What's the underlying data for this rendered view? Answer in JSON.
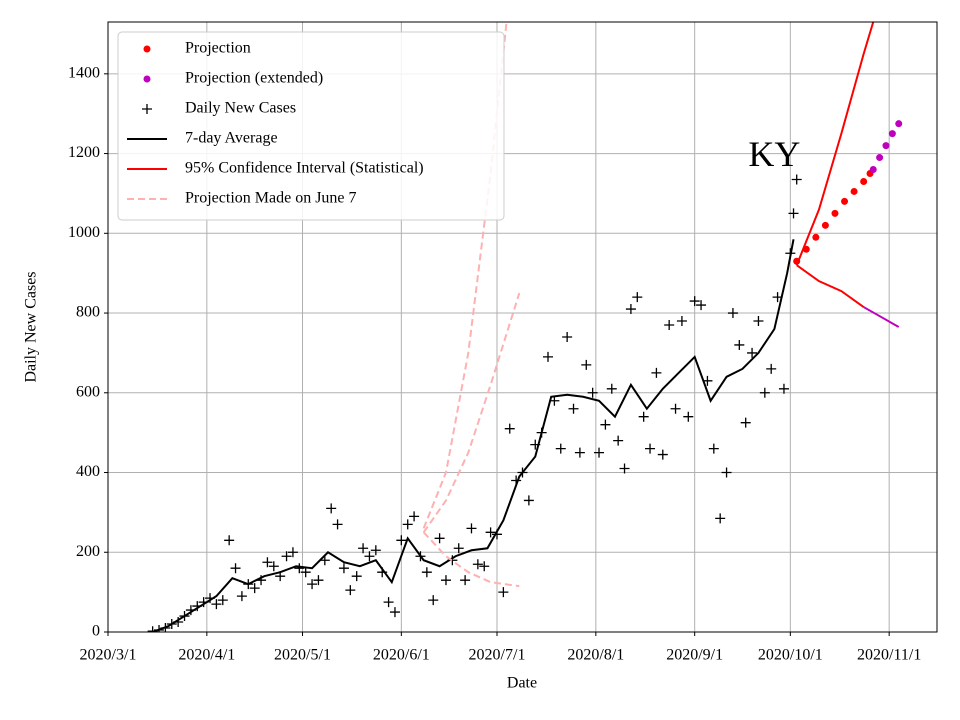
{
  "chart_data": {
    "type": "line",
    "annotation": "KY",
    "annotation_x": "2020-09-26",
    "annotation_y": 1190,
    "xlabel": "Date",
    "ylabel": "Daily New Cases",
    "xlim": [
      "2020-03-01",
      "2020-11-16"
    ],
    "ylim": [
      0,
      1530
    ],
    "xticks": [
      {
        "value": "2020-03-01",
        "label": "2020/3/1"
      },
      {
        "value": "2020-04-01",
        "label": "2020/4/1"
      },
      {
        "value": "2020-05-01",
        "label": "2020/5/1"
      },
      {
        "value": "2020-06-01",
        "label": "2020/6/1"
      },
      {
        "value": "2020-07-01",
        "label": "2020/7/1"
      },
      {
        "value": "2020-08-01",
        "label": "2020/8/1"
      },
      {
        "value": "2020-09-01",
        "label": "2020/9/1"
      },
      {
        "value": "2020-10-01",
        "label": "2020/10/1"
      },
      {
        "value": "2020-11-01",
        "label": "2020/11/1"
      }
    ],
    "yticks": [
      0,
      200,
      400,
      600,
      800,
      1000,
      1200,
      1400
    ],
    "grid": true,
    "legend": "upper left",
    "series": [
      {
        "name": "Projection",
        "color": "#ff0000",
        "marker": "dot",
        "x": [
          "2020-10-03",
          "2020-10-06",
          "2020-10-09",
          "2020-10-12",
          "2020-10-15",
          "2020-10-18",
          "2020-10-21",
          "2020-10-24",
          "2020-10-26"
        ],
        "values": [
          930,
          960,
          990,
          1020,
          1050,
          1080,
          1105,
          1130,
          1150
        ]
      },
      {
        "name": "Projection (extended)",
        "color": "#bf00bf",
        "marker": "dot",
        "x": [
          "2020-10-27",
          "2020-10-29",
          "2020-10-31",
          "2020-11-02",
          "2020-11-04"
        ],
        "values": [
          1160,
          1190,
          1220,
          1250,
          1275
        ]
      },
      {
        "name": "Daily New Cases",
        "color": "#000000",
        "marker": "plus",
        "x": [
          "2020-03-15",
          "2020-03-17",
          "2020-03-19",
          "2020-03-21",
          "2020-03-23",
          "2020-03-25",
          "2020-03-27",
          "2020-03-29",
          "2020-03-31",
          "2020-04-02",
          "2020-04-04",
          "2020-04-06",
          "2020-04-08",
          "2020-04-10",
          "2020-04-12",
          "2020-04-14",
          "2020-04-16",
          "2020-04-18",
          "2020-04-20",
          "2020-04-22",
          "2020-04-24",
          "2020-04-26",
          "2020-04-28",
          "2020-04-30",
          "2020-05-02",
          "2020-05-04",
          "2020-05-06",
          "2020-05-08",
          "2020-05-10",
          "2020-05-12",
          "2020-05-14",
          "2020-05-16",
          "2020-05-18",
          "2020-05-20",
          "2020-05-22",
          "2020-05-24",
          "2020-05-26",
          "2020-05-28",
          "2020-05-30",
          "2020-06-01",
          "2020-06-03",
          "2020-06-05",
          "2020-06-07",
          "2020-06-09",
          "2020-06-11",
          "2020-06-13",
          "2020-06-15",
          "2020-06-17",
          "2020-06-19",
          "2020-06-21",
          "2020-06-23",
          "2020-06-25",
          "2020-06-27",
          "2020-06-29",
          "2020-07-01",
          "2020-07-03",
          "2020-07-05",
          "2020-07-07",
          "2020-07-09",
          "2020-07-11",
          "2020-07-13",
          "2020-07-15",
          "2020-07-17",
          "2020-07-19",
          "2020-07-21",
          "2020-07-23",
          "2020-07-25",
          "2020-07-27",
          "2020-07-29",
          "2020-07-31",
          "2020-08-02",
          "2020-08-04",
          "2020-08-06",
          "2020-08-08",
          "2020-08-10",
          "2020-08-12",
          "2020-08-14",
          "2020-08-16",
          "2020-08-18",
          "2020-08-20",
          "2020-08-22",
          "2020-08-24",
          "2020-08-26",
          "2020-08-28",
          "2020-08-30",
          "2020-09-01",
          "2020-09-03",
          "2020-09-05",
          "2020-09-07",
          "2020-09-09",
          "2020-09-11",
          "2020-09-13",
          "2020-09-15",
          "2020-09-17",
          "2020-09-19",
          "2020-09-21",
          "2020-09-23",
          "2020-09-25",
          "2020-09-27",
          "2020-09-29",
          "2020-10-01",
          "2020-10-02",
          "2020-10-03"
        ],
        "values": [
          2,
          5,
          10,
          20,
          25,
          40,
          55,
          65,
          75,
          85,
          70,
          80,
          230,
          160,
          90,
          120,
          110,
          130,
          175,
          165,
          140,
          190,
          200,
          160,
          150,
          120,
          130,
          180,
          310,
          270,
          160,
          105,
          140,
          210,
          190,
          205,
          150,
          75,
          50,
          230,
          270,
          290,
          190,
          150,
          80,
          235,
          130,
          180,
          210,
          130,
          260,
          170,
          165,
          250,
          245,
          100,
          510,
          380,
          400,
          330,
          470,
          500,
          690,
          580,
          460,
          740,
          560,
          450,
          670,
          600,
          450,
          520,
          610,
          480,
          410,
          810,
          840,
          540,
          460,
          650,
          445,
          770,
          560,
          780,
          540,
          830,
          820,
          630,
          460,
          285,
          400,
          800,
          720,
          525,
          700,
          780,
          600,
          660,
          840,
          610,
          950,
          1050,
          1135
        ]
      },
      {
        "name": "7-day Average",
        "color": "#000000",
        "line": "solid",
        "x": [
          "2020-03-15",
          "2020-03-20",
          "2020-03-25",
          "2020-03-30",
          "2020-04-04",
          "2020-04-09",
          "2020-04-14",
          "2020-04-19",
          "2020-04-24",
          "2020-04-29",
          "2020-05-04",
          "2020-05-09",
          "2020-05-14",
          "2020-05-19",
          "2020-05-24",
          "2020-05-29",
          "2020-06-03",
          "2020-06-08",
          "2020-06-13",
          "2020-06-18",
          "2020-06-23",
          "2020-06-28",
          "2020-07-03",
          "2020-07-08",
          "2020-07-13",
          "2020-07-18",
          "2020-07-23",
          "2020-07-28",
          "2020-08-02",
          "2020-08-07",
          "2020-08-12",
          "2020-08-17",
          "2020-08-22",
          "2020-08-27",
          "2020-09-01",
          "2020-09-06",
          "2020-09-11",
          "2020-09-16",
          "2020-09-21",
          "2020-09-26",
          "2020-09-30",
          "2020-10-02"
        ],
        "values": [
          0,
          15,
          40,
          65,
          90,
          135,
          120,
          140,
          150,
          165,
          160,
          200,
          175,
          165,
          180,
          125,
          235,
          180,
          165,
          190,
          205,
          210,
          280,
          390,
          440,
          590,
          595,
          590,
          580,
          540,
          620,
          560,
          610,
          650,
          690,
          580,
          640,
          660,
          700,
          760,
          900,
          985
        ]
      },
      {
        "name": "95% Confidence Interval (Statistical)",
        "color": "#ff0000",
        "line": "solid",
        "x": [
          "2020-10-03",
          "2020-10-10",
          "2020-10-17",
          "2020-10-24",
          "2020-10-27"
        ],
        "values": [
          920,
          1060,
          1250,
          1450,
          1530
        ]
      },
      {
        "name": "Projection Made on June 7",
        "color": "#ffb0b0",
        "line": "dashed",
        "x": [
          "2020-06-08",
          "2020-06-15",
          "2020-06-22",
          "2020-06-29",
          "2020-07-08"
        ],
        "values": [
          250,
          330,
          450,
          620,
          850
        ]
      },
      {
        "color": "#ff0000",
        "line": "solid",
        "x": [
          "2020-10-03",
          "2020-10-10",
          "2020-10-17",
          "2020-10-24"
        ],
        "values": [
          920,
          880,
          855,
          815
        ]
      },
      {
        "color": "#bf00bf",
        "line": "solid",
        "x": [
          "2020-10-24",
          "2020-11-04"
        ],
        "values": [
          815,
          765
        ]
      },
      {
        "color": "#ffb0b0",
        "line": "dashed",
        "x": [
          "2020-06-08",
          "2020-06-15",
          "2020-06-22",
          "2020-06-29",
          "2020-07-04"
        ],
        "values": [
          260,
          400,
          700,
          1150,
          1530
        ]
      },
      {
        "color": "#ffb0b0",
        "line": "dashed",
        "x": [
          "2020-06-08",
          "2020-06-15",
          "2020-06-22",
          "2020-06-29",
          "2020-07-08"
        ],
        "values": [
          250,
          190,
          150,
          125,
          115
        ]
      }
    ]
  }
}
